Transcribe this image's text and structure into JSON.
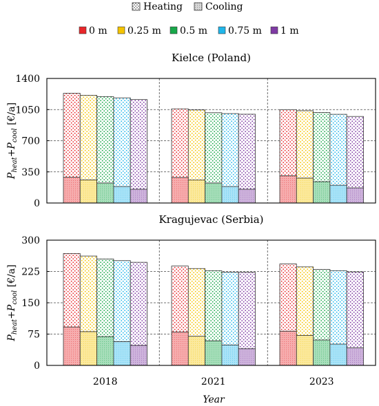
{
  "chart_data": [
    {
      "type": "bar",
      "stacked": true,
      "title": "Kielce (Poland)",
      "ylabel_main": "P",
      "ylabel_sub1": "heat",
      "ylabel_plus": "+P",
      "ylabel_sub2": "cool",
      "ylabel_unit": " [€/a]",
      "ylim": [
        0,
        1400
      ],
      "yticks": [
        0,
        350,
        700,
        1050,
        1400
      ],
      "categories": [
        "2018",
        "2021",
        "2023"
      ],
      "groups": [
        {
          "name": "0 m",
          "color": "#e8262a",
          "heating": [
            943,
            770,
            743
          ],
          "cooling": [
            290,
            288,
            306
          ]
        },
        {
          "name": "0.25 m",
          "color": "#f5c400",
          "heating": [
            951,
            788,
            757
          ],
          "cooling": [
            260,
            258,
            280
          ]
        },
        {
          "name": "0.5 m",
          "color": "#18a84a",
          "heating": [
            971,
            790,
            777
          ],
          "cooling": [
            225,
            225,
            240
          ]
        },
        {
          "name": "0.75 m",
          "color": "#20b6ea",
          "heating": [
            997,
            820,
            797
          ],
          "cooling": [
            185,
            185,
            200
          ]
        },
        {
          "name": "1 m",
          "color": "#7f3aa4",
          "heating": [
            1008,
            843,
            803
          ],
          "cooling": [
            155,
            155,
            170
          ]
        }
      ]
    },
    {
      "type": "bar",
      "stacked": true,
      "title": "Kragujevac (Serbia)",
      "ylabel_main": "P",
      "ylabel_sub1": "heat",
      "ylabel_plus": "+P",
      "ylabel_sub2": "cool",
      "ylabel_unit": " [€/a]",
      "ylim": [
        0,
        300
      ],
      "yticks": [
        0,
        75,
        150,
        225,
        300
      ],
      "categories": [
        "2018",
        "2021",
        "2023"
      ],
      "groups": [
        {
          "name": "0 m",
          "color": "#e8262a",
          "heating": [
            176,
            158,
            161
          ],
          "cooling": [
            92,
            80,
            82
          ]
        },
        {
          "name": "0.25 m",
          "color": "#f5c400",
          "heating": [
            181,
            162,
            164
          ],
          "cooling": [
            81,
            70,
            72
          ]
        },
        {
          "name": "0.5 m",
          "color": "#18a84a",
          "heating": [
            186,
            168,
            169
          ],
          "cooling": [
            69,
            59,
            61
          ]
        },
        {
          "name": "0.75 m",
          "color": "#20b6ea",
          "heating": [
            194,
            174,
            176
          ],
          "cooling": [
            57,
            49,
            51
          ]
        },
        {
          "name": "1 m",
          "color": "#7f3aa4",
          "heating": [
            199,
            183,
            182
          ],
          "cooling": [
            48,
            40,
            42
          ]
        }
      ]
    }
  ],
  "legend_types": [
    {
      "name": "Heating",
      "pattern": "heating"
    },
    {
      "name": "Cooling",
      "pattern": "cooling"
    }
  ],
  "legend_groups": [
    "0 m",
    "0.25 m",
    "0.5 m",
    "0.75 m",
    "1 m"
  ],
  "xlabel": "Year"
}
